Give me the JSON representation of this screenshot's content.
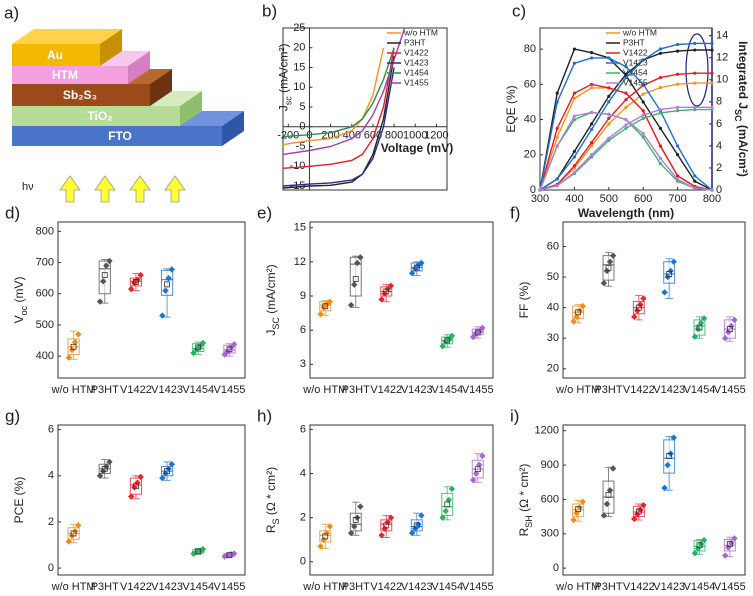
{
  "diagram": {
    "label": "a)",
    "layers": [
      "FTO",
      "TiO₂",
      "Sb₂S₃",
      "HTM",
      "Au"
    ],
    "light": "hν"
  },
  "chart_data": [
    {
      "type": "line",
      "label": "b)",
      "axes_cross_zero": true,
      "legend": "top-right",
      "xlabel": [
        {
          "t": "Voltage (mV)"
        }
      ],
      "ylabel": [
        {
          "t": "J"
        },
        {
          "t": "sc",
          "sub": true
        },
        {
          "t": " (mA/cm²)"
        }
      ],
      "x": [
        -250,
        0,
        200,
        400,
        500,
        600,
        700,
        800,
        900
      ],
      "xlim": [
        -250,
        1300
      ],
      "xticks": [
        -200,
        0,
        200,
        400,
        600,
        800,
        1000,
        1200
      ],
      "ylim": [
        -16,
        25
      ],
      "yticks": [
        -15,
        -10,
        -5,
        0,
        5,
        10,
        15,
        20,
        25
      ],
      "series": [
        {
          "name": "w/o HTM",
          "color": "#f7931e",
          "values": [
            -4.5,
            -3.5,
            -3,
            -1,
            2,
            8,
            20,
            null,
            null
          ]
        },
        {
          "name": "P3HT",
          "color": "#222222",
          "values": [
            -15.5,
            -15,
            -14.8,
            -14,
            -12,
            -7,
            2,
            18,
            null
          ]
        },
        {
          "name": "V1422",
          "color": "#e41e26",
          "values": [
            -10.5,
            -10,
            -9.5,
            -8.5,
            -7,
            -3,
            5,
            20,
            null
          ]
        },
        {
          "name": "V1423",
          "color": "#2a2a8a",
          "values": [
            -15,
            -14.5,
            -14.2,
            -13.5,
            -12,
            -8,
            0,
            15,
            null
          ]
        },
        {
          "name": "V1454",
          "color": "#2d8a4e",
          "values": [
            -2.5,
            -2,
            -1.5,
            0,
            2,
            6,
            12,
            20,
            null
          ]
        },
        {
          "name": "V1455",
          "color": "#a03cb4",
          "values": [
            -7,
            -6,
            -5,
            -3,
            -1,
            3,
            9,
            17,
            25
          ]
        }
      ]
    },
    {
      "type": "line",
      "label": "c)",
      "legend": "top-center",
      "xlabel": [
        {
          "t": "Wavelength (nm)"
        }
      ],
      "ylabel": [
        {
          "t": "EQE (%)"
        }
      ],
      "y2label": [
        {
          "t": "Integrated J"
        },
        {
          "t": "SC",
          "sub": true
        },
        {
          "t": " (mA/cm²)"
        }
      ],
      "y2color": "#1a237e",
      "x": [
        300,
        350,
        400,
        450,
        500,
        550,
        600,
        650,
        700,
        750,
        800
      ],
      "xlim": [
        300,
        800
      ],
      "xticks": [
        300,
        400,
        500,
        600,
        700,
        800
      ],
      "ylim": [
        0,
        92
      ],
      "yticks": [
        0,
        20,
        40,
        60,
        80
      ],
      "y2lim": [
        0,
        14.7
      ],
      "y2ticks": [
        0,
        2,
        4,
        6,
        8,
        10,
        12,
        14
      ],
      "series": [
        {
          "name": "w/o HTM",
          "color": "#f7931e",
          "values": [
            0,
            30,
            52,
            58,
            58,
            55,
            45,
            25,
            8,
            2,
            0
          ],
          "y2values": [
            0,
            0.5,
            2,
            4,
            6,
            7.5,
            8.7,
            9.3,
            9.6,
            9.7,
            9.7
          ]
        },
        {
          "name": "P3HT",
          "color": "#222222",
          "values": [
            0,
            55,
            80,
            78,
            75,
            65,
            50,
            35,
            20,
            5,
            0
          ],
          "y2values": [
            0,
            1,
            3.5,
            6,
            8.5,
            10.5,
            11.8,
            12.4,
            12.6,
            12.7,
            12.7
          ]
        },
        {
          "name": "V1422",
          "color": "#e41e26",
          "values": [
            0,
            35,
            55,
            60,
            58,
            55,
            45,
            25,
            8,
            2,
            0
          ],
          "y2values": [
            0,
            0.5,
            2.2,
            4.3,
            6.5,
            8.2,
            9.5,
            10.2,
            10.5,
            10.6,
            10.6
          ]
        },
        {
          "name": "V1423",
          "color": "#1f6fd0",
          "values": [
            0,
            50,
            72,
            75,
            75,
            70,
            60,
            45,
            25,
            8,
            0
          ],
          "y2values": [
            0,
            1,
            3,
            5.5,
            8,
            10.2,
            11.8,
            12.8,
            13.2,
            13.3,
            13.3
          ]
        },
        {
          "name": "V1454",
          "color": "#3cb371",
          "values": [
            0,
            25,
            40,
            44,
            43,
            40,
            30,
            15,
            5,
            1,
            0
          ],
          "y2values": [
            0,
            0.4,
            1.5,
            3,
            4.5,
            5.6,
            6.5,
            7,
            7.2,
            7.3,
            7.3
          ]
        },
        {
          "name": "V1455",
          "color": "#b27ed6",
          "values": [
            0,
            25,
            42,
            44,
            43,
            40,
            32,
            18,
            6,
            1,
            0
          ],
          "y2values": [
            0,
            0.4,
            1.6,
            3.2,
            4.7,
            5.9,
            6.8,
            7.3,
            7.5,
            7.5,
            7.5
          ]
        }
      ]
    },
    {
      "type": "box",
      "label": "d)",
      "ylabel": [
        {
          "t": "V"
        },
        {
          "t": "oc",
          "sub": true
        },
        {
          "t": " (mV)"
        }
      ],
      "categories": [
        "w/o HTM",
        "P3HT",
        "V1422",
        "V1423",
        "V1454",
        "V1455"
      ],
      "colors": [
        "#f28b1e",
        "#555555",
        "#e8242c",
        "#1e74d2",
        "#2ab063",
        "#a866d4"
      ],
      "ylim": [
        330,
        830
      ],
      "yticks": [
        400,
        500,
        600,
        700,
        800
      ],
      "boxes": [
        {
          "min": 390,
          "q1": 405,
          "median": 430,
          "q3": 455,
          "max": 480,
          "mean": 430,
          "points": [
            395,
            420,
            445,
            470
          ]
        },
        {
          "min": 570,
          "q1": 600,
          "median": 680,
          "q3": 705,
          "max": 710,
          "mean": 660,
          "points": [
            575,
            640,
            690,
            705
          ]
        },
        {
          "min": 610,
          "q1": 625,
          "median": 640,
          "q3": 650,
          "max": 665,
          "mean": 638,
          "points": [
            615,
            635,
            645,
            660
          ]
        },
        {
          "min": 525,
          "q1": 595,
          "median": 645,
          "q3": 675,
          "max": 680,
          "mean": 630,
          "points": [
            530,
            610,
            650,
            678
          ]
        },
        {
          "min": 405,
          "q1": 415,
          "median": 425,
          "q3": 440,
          "max": 445,
          "mean": 428,
          "points": [
            410,
            422,
            432,
            442
          ]
        },
        {
          "min": 400,
          "q1": 410,
          "median": 420,
          "q3": 435,
          "max": 440,
          "mean": 422,
          "points": [
            405,
            415,
            428,
            438
          ]
        }
      ]
    },
    {
      "type": "box",
      "label": "e)",
      "ylabel": [
        {
          "t": "J"
        },
        {
          "t": "SC",
          "sub": true
        },
        {
          "t": " (mA/cm²)"
        }
      ],
      "categories": [
        "w/o HTM",
        "P3HT",
        "V1422",
        "V1423",
        "V1454",
        "V1455"
      ],
      "colors": [
        "#f28b1e",
        "#555555",
        "#e8242c",
        "#1e74d2",
        "#2ab063",
        "#a866d4"
      ],
      "ylim": [
        1.8,
        15.5
      ],
      "yticks": [
        3,
        6,
        9,
        12,
        15
      ],
      "boxes": [
        {
          "min": 7.3,
          "q1": 7.7,
          "median": 8.2,
          "q3": 8.5,
          "max": 8.6,
          "mean": 8.1,
          "points": [
            7.4,
            8,
            8.3,
            8.5
          ]
        },
        {
          "min": 8,
          "q1": 9,
          "median": 11.8,
          "q3": 12.4,
          "max": 12.5,
          "mean": 10.5,
          "points": [
            8.2,
            10,
            11.9,
            12.4
          ]
        },
        {
          "min": 8.5,
          "q1": 9,
          "median": 9.4,
          "q3": 9.8,
          "max": 10,
          "mean": 9.4,
          "points": [
            8.7,
            9.2,
            9.6,
            9.9
          ]
        },
        {
          "min": 10.8,
          "q1": 11.2,
          "median": 11.5,
          "q3": 11.9,
          "max": 12,
          "mean": 11.5,
          "points": [
            11,
            11.4,
            11.7,
            11.9
          ]
        },
        {
          "min": 4.5,
          "q1": 4.8,
          "median": 5.1,
          "q3": 5.4,
          "max": 5.6,
          "mean": 5.1,
          "points": [
            4.6,
            5,
            5.2,
            5.5
          ]
        },
        {
          "min": 5.3,
          "q1": 5.6,
          "median": 5.8,
          "q3": 6.1,
          "max": 6.3,
          "mean": 5.8,
          "points": [
            5.4,
            5.7,
            5.9,
            6.2
          ]
        }
      ]
    },
    {
      "type": "box",
      "label": "f)",
      "ylabel": [
        {
          "t": "FF (%)"
        }
      ],
      "categories": [
        "w/o HTM",
        "P3HT",
        "V1422",
        "V1423",
        "V1454",
        "V1455"
      ],
      "colors": [
        "#f28b1e",
        "#555555",
        "#e8242c",
        "#1e74d2",
        "#2ab063",
        "#a866d4"
      ],
      "ylim": [
        17,
        68
      ],
      "yticks": [
        20,
        30,
        40,
        50,
        60
      ],
      "boxes": [
        {
          "min": 35,
          "q1": 36.5,
          "median": 38.5,
          "q3": 40.5,
          "max": 41,
          "mean": 38.5,
          "points": [
            35.5,
            37,
            39,
            40.5
          ]
        },
        {
          "min": 47,
          "q1": 49,
          "median": 54,
          "q3": 57,
          "max": 58,
          "mean": 53,
          "points": [
            48,
            52,
            55,
            57
          ]
        },
        {
          "min": 36,
          "q1": 38,
          "median": 40,
          "q3": 42,
          "max": 44,
          "mean": 40,
          "points": [
            37,
            39,
            41,
            43
          ]
        },
        {
          "min": 43,
          "q1": 48,
          "median": 51,
          "q3": 55,
          "max": 56,
          "mean": 51,
          "points": [
            45,
            50,
            52,
            55
          ]
        },
        {
          "min": 30,
          "q1": 31,
          "median": 34,
          "q3": 36,
          "max": 37,
          "mean": 33.5,
          "points": [
            30.5,
            33,
            35,
            36.5
          ]
        },
        {
          "min": 29,
          "q1": 30,
          "median": 33,
          "q3": 36,
          "max": 37,
          "mean": 33,
          "points": [
            30,
            32,
            34,
            36
          ]
        }
      ]
    },
    {
      "type": "box",
      "label": "g)",
      "ylabel": [
        {
          "t": "PCE (%)"
        }
      ],
      "categories": [
        "w/o HTM",
        "P3HT",
        "V1422",
        "V1423",
        "V1454",
        "V1455"
      ],
      "colors": [
        "#f28b1e",
        "#555555",
        "#e8242c",
        "#1e74d2",
        "#2ab063",
        "#a866d4"
      ],
      "ylim": [
        -0.3,
        6.2
      ],
      "yticks": [
        0,
        2,
        4,
        6
      ],
      "boxes": [
        {
          "min": 1.1,
          "q1": 1.25,
          "median": 1.5,
          "q3": 1.75,
          "max": 1.9,
          "mean": 1.5,
          "points": [
            1.15,
            1.4,
            1.6,
            1.85
          ]
        },
        {
          "min": 3.9,
          "q1": 4.1,
          "median": 4.3,
          "q3": 4.5,
          "max": 4.7,
          "mean": 4.3,
          "points": [
            4,
            4.2,
            4.4,
            4.6
          ]
        },
        {
          "min": 3,
          "q1": 3.2,
          "median": 3.6,
          "q3": 3.9,
          "max": 4,
          "mean": 3.55,
          "points": [
            3.1,
            3.5,
            3.7,
            3.95
          ]
        },
        {
          "min": 3.8,
          "q1": 4,
          "median": 4.2,
          "q3": 4.4,
          "max": 4.6,
          "mean": 4.2,
          "points": [
            3.9,
            4.1,
            4.3,
            4.5
          ]
        },
        {
          "min": 0.6,
          "q1": 0.65,
          "median": 0.7,
          "q3": 0.8,
          "max": 0.85,
          "mean": 0.72,
          "points": [
            0.62,
            0.7,
            0.75,
            0.82
          ]
        },
        {
          "min": 0.48,
          "q1": 0.52,
          "median": 0.57,
          "q3": 0.62,
          "max": 0.65,
          "mean": 0.56,
          "points": [
            0.5,
            0.55,
            0.6,
            0.63
          ]
        }
      ]
    },
    {
      "type": "box",
      "label": "h)",
      "ylabel": [
        {
          "t": "R"
        },
        {
          "t": "S",
          "sub": true
        },
        {
          "t": " (Ω * cm²)"
        }
      ],
      "categories": [
        "w/o HTM",
        "P3HT",
        "V1422",
        "V1423",
        "V1454",
        "V1455"
      ],
      "colors": [
        "#f28b1e",
        "#555555",
        "#e8242c",
        "#1e74d2",
        "#2ab063",
        "#a866d4"
      ],
      "ylim": [
        -0.6,
        6.2
      ],
      "yticks": [
        0,
        2,
        4,
        6
      ],
      "boxes": [
        {
          "min": 0.6,
          "q1": 0.9,
          "median": 1.2,
          "q3": 1.4,
          "max": 1.7,
          "mean": 1.15,
          "points": [
            0.7,
            1,
            1.3,
            1.6
          ]
        },
        {
          "min": 1.2,
          "q1": 1.4,
          "median": 1.7,
          "q3": 2.2,
          "max": 2.7,
          "mean": 1.9,
          "points": [
            1.3,
            1.6,
            2,
            2.5
          ]
        },
        {
          "min": 1.1,
          "q1": 1.4,
          "median": 1.7,
          "q3": 1.9,
          "max": 2.1,
          "mean": 1.65,
          "points": [
            1.2,
            1.5,
            1.8,
            2
          ]
        },
        {
          "min": 1.2,
          "q1": 1.4,
          "median": 1.6,
          "q3": 1.9,
          "max": 2.2,
          "mean": 1.65,
          "points": [
            1.3,
            1.5,
            1.7,
            2.1
          ]
        },
        {
          "min": 1.9,
          "q1": 2.1,
          "median": 2.5,
          "q3": 3.1,
          "max": 3.4,
          "mean": 2.6,
          "points": [
            2,
            2.3,
            2.8,
            3.3
          ]
        },
        {
          "min": 3.6,
          "q1": 3.8,
          "median": 4.2,
          "q3": 4.6,
          "max": 4.9,
          "mean": 4.2,
          "points": [
            3.7,
            4,
            4.4,
            4.8
          ]
        }
      ]
    },
    {
      "type": "box",
      "label": "i)",
      "ylabel": [
        {
          "t": "R"
        },
        {
          "t": "SH",
          "sub": true
        },
        {
          "t": " (Ω * cm²)"
        }
      ],
      "categories": [
        "w/o HTM",
        "P3HT",
        "V1422",
        "V1423",
        "V1454",
        "V1455"
      ],
      "colors": [
        "#f28b1e",
        "#555555",
        "#e8242c",
        "#1e74d2",
        "#2ab063",
        "#a866d4"
      ],
      "ylim": [
        -60,
        1250
      ],
      "yticks": [
        0,
        300,
        600,
        900,
        1200
      ],
      "boxes": [
        {
          "min": 410,
          "q1": 450,
          "median": 510,
          "q3": 560,
          "max": 590,
          "mean": 515,
          "points": [
            420,
            480,
            530,
            580
          ]
        },
        {
          "min": 450,
          "q1": 480,
          "median": 620,
          "q3": 760,
          "max": 880,
          "mean": 640,
          "points": [
            460,
            560,
            680,
            870
          ]
        },
        {
          "min": 420,
          "q1": 450,
          "median": 490,
          "q3": 540,
          "max": 560,
          "mean": 495,
          "points": [
            430,
            470,
            510,
            550
          ]
        },
        {
          "min": 680,
          "q1": 830,
          "median": 960,
          "q3": 1120,
          "max": 1150,
          "mean": 980,
          "points": [
            700,
            900,
            1000,
            1140
          ]
        },
        {
          "min": 120,
          "q1": 150,
          "median": 190,
          "q3": 240,
          "max": 250,
          "mean": 200,
          "points": [
            130,
            170,
            210,
            245
          ]
        },
        {
          "min": 100,
          "q1": 150,
          "median": 200,
          "q3": 250,
          "max": 270,
          "mean": 210,
          "points": [
            110,
            180,
            220,
            260
          ]
        }
      ]
    }
  ]
}
